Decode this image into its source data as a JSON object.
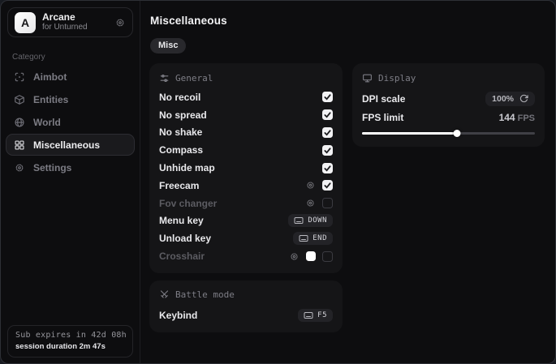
{
  "colors": {
    "window_bg": "#0d0d0f",
    "panel_bg": "#151517",
    "checkbox_fill": "#f2f2f4",
    "slider_fill": "#ffffff",
    "badge_bg": "#232327"
  },
  "sidebar": {
    "brand": {
      "logo_letter": "A",
      "name": "Arcane",
      "subtitle": "for Unturned"
    },
    "category_label": "Category",
    "items": [
      {
        "label": "Aimbot",
        "icon": "crosshair-icon",
        "active": false
      },
      {
        "label": "Entities",
        "icon": "cube-icon",
        "active": false
      },
      {
        "label": "World",
        "icon": "globe-icon",
        "active": false
      },
      {
        "label": "Miscellaneous",
        "icon": "grid-icon",
        "active": true
      },
      {
        "label": "Settings",
        "icon": "gear-icon",
        "active": false
      }
    ],
    "footer": {
      "line1": "Sub expires in 42d 08h",
      "line2": "session duration 2m 47s"
    }
  },
  "main": {
    "title": "Miscellaneous",
    "tabs": [
      {
        "label": "Misc",
        "active": true
      }
    ],
    "panels": {
      "general": {
        "header": "General",
        "rows": [
          {
            "label": "No recoil",
            "control": "checkbox",
            "checked": true
          },
          {
            "label": "No spread",
            "control": "checkbox",
            "checked": true
          },
          {
            "label": "No shake",
            "control": "checkbox",
            "checked": true
          },
          {
            "label": "Compass",
            "control": "checkbox",
            "checked": true
          },
          {
            "label": "Unhide map",
            "control": "checkbox",
            "checked": true
          },
          {
            "label": "Freecam",
            "control": "checkbox",
            "checked": true,
            "has_settings": true
          },
          {
            "label": "Fov changer",
            "control": "checkbox",
            "checked": false,
            "has_settings": true,
            "disabled": true
          },
          {
            "label": "Menu key",
            "control": "keybind",
            "key": "DOWN"
          },
          {
            "label": "Unload key",
            "control": "keybind",
            "key": "END"
          },
          {
            "label": "Crosshair",
            "control": "checkbox",
            "checked": false,
            "has_settings": true,
            "disabled": true,
            "swatch": "#ffffff"
          }
        ]
      },
      "display": {
        "header": "Display",
        "dpi_scale": {
          "label": "DPI scale",
          "value": "100%"
        },
        "fps_limit": {
          "label": "FPS limit",
          "value": "144",
          "unit": "FPS",
          "slider_percent": 55
        }
      },
      "battle_mode": {
        "header": "Battle mode",
        "keybind": {
          "label": "Keybind",
          "key": "F5"
        }
      }
    }
  }
}
